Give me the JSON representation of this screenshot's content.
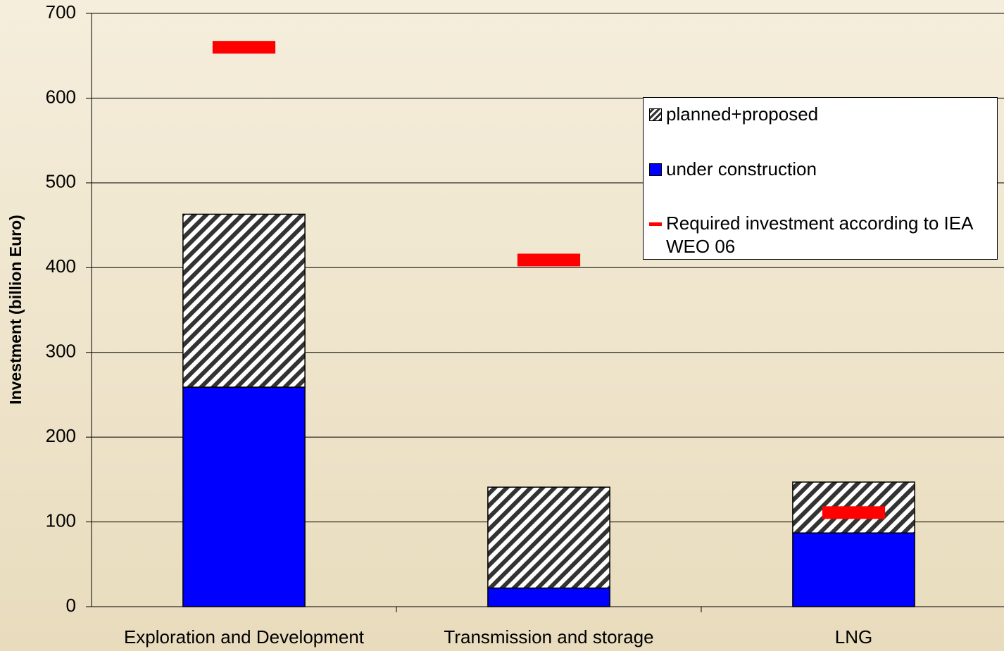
{
  "chart_data": {
    "type": "bar",
    "stacked": true,
    "y_label": "Investment (billion Euro)",
    "categories": [
      "Exploration and Development",
      "Transmission and storage",
      "LNG"
    ],
    "series": [
      {
        "name": "under construction",
        "color": "#0000ff",
        "values": [
          259,
          22,
          87
        ]
      },
      {
        "name": "planned+proposed",
        "color": "#000000",
        "hatch": true,
        "values": [
          204,
          119,
          60
        ]
      },
      {
        "name": "Required investment according to IEA WEO 06",
        "color": "#ff0000",
        "type": "marker",
        "values": [
          660,
          409,
          111
        ]
      }
    ],
    "legend_order": [
      1,
      0,
      2
    ],
    "ylim": [
      0,
      700
    ],
    "yticks": [
      0,
      100,
      200,
      300,
      400,
      500,
      600,
      700
    ],
    "grid": true
  }
}
